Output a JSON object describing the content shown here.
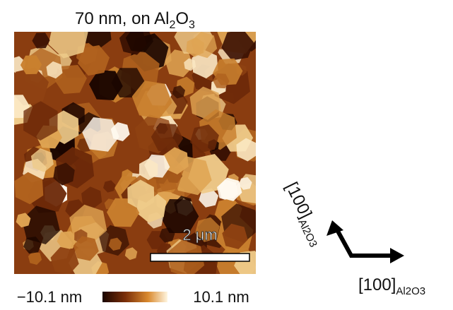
{
  "title": {
    "parts": [
      "70 nm, on Al",
      "2",
      "O",
      "3"
    ]
  },
  "scale_bar": {
    "label": "2 μm"
  },
  "colorbar": {
    "min_label": "−10.1 nm",
    "max_label": "10.1 nm"
  },
  "directions": [
    {
      "main": "[100]",
      "sub": "Al2O3"
    },
    {
      "main": "[100]",
      "sub": "Al2O3"
    }
  ]
}
